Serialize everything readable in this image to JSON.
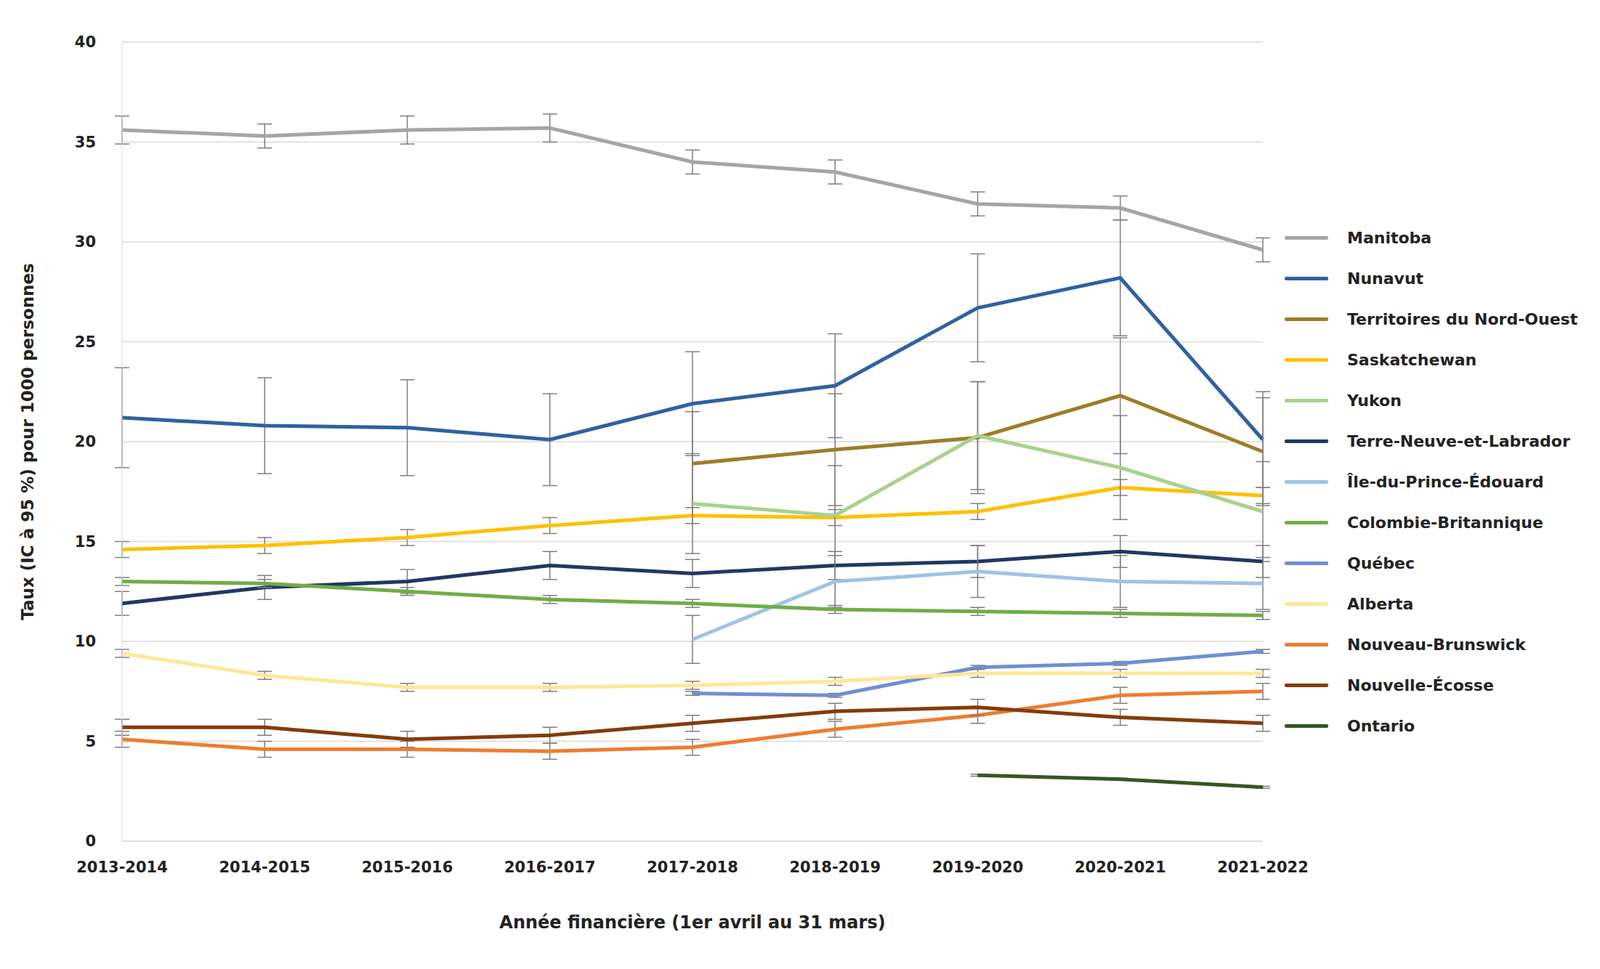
{
  "chart_data": {
    "type": "line",
    "x_label": "Année financière (1er avril au 31 mars)",
    "y_label": "Taux (IC à 95 %) pour 1000 personnes",
    "categories": [
      "2013-2014",
      "2014-2015",
      "2015-2016",
      "2016-2017",
      "2017-2018",
      "2018-2019",
      "2019-2020",
      "2020-2021",
      "2021-2022"
    ],
    "ylim": [
      0,
      40
    ],
    "yticks": [
      0,
      5,
      10,
      15,
      20,
      25,
      30,
      35,
      40
    ],
    "grid": true,
    "legend": "right",
    "series": [
      {
        "name": "Manitoba",
        "color": "#a5a5a5",
        "values": [
          35.6,
          35.3,
          35.6,
          35.7,
          34.0,
          33.5,
          31.9,
          31.7,
          29.6
        ],
        "errors": [
          0.7,
          0.6,
          0.7,
          0.7,
          0.6,
          0.6,
          0.6,
          0.6,
          0.6
        ]
      },
      {
        "name": "Nunavut",
        "color": "#2e62a0",
        "values": [
          21.2,
          20.8,
          20.7,
          20.1,
          21.9,
          22.8,
          26.7,
          28.2,
          20.1
        ],
        "errors": [
          2.5,
          2.4,
          2.4,
          2.3,
          2.6,
          2.6,
          2.7,
          2.9,
          2.4
        ]
      },
      {
        "name": "Territoires du Nord-Ouest",
        "color": "#9e7d28",
        "values": [
          null,
          null,
          null,
          null,
          18.9,
          19.6,
          20.2,
          22.3,
          19.5
        ],
        "errors": [
          null,
          null,
          null,
          null,
          2.6,
          2.8,
          2.8,
          2.9,
          2.7
        ]
      },
      {
        "name": "Saskatchewan",
        "color": "#ffc000",
        "values": [
          14.6,
          14.8,
          15.2,
          15.8,
          16.3,
          16.2,
          16.5,
          17.7,
          17.3
        ],
        "errors": [
          0.4,
          0.4,
          0.4,
          0.4,
          0.4,
          0.4,
          0.4,
          0.4,
          0.4
        ]
      },
      {
        "name": "Yukon",
        "color": "#a9d18e",
        "values": [
          null,
          null,
          null,
          null,
          16.9,
          16.3,
          20.3,
          18.7,
          16.5
        ],
        "errors": [
          null,
          null,
          null,
          null,
          2.5,
          2.5,
          2.7,
          2.6,
          2.5
        ]
      },
      {
        "name": "Terre-Neuve-et-Labrador",
        "color": "#203864",
        "values": [
          11.9,
          12.7,
          13.0,
          13.8,
          13.4,
          13.8,
          14.0,
          14.5,
          14.0
        ],
        "errors": [
          0.6,
          0.6,
          0.6,
          0.7,
          0.7,
          0.7,
          0.8,
          0.8,
          0.8
        ]
      },
      {
        "name": "Île-du-Prince-Édouard",
        "color": "#9dc3e6",
        "values": [
          null,
          null,
          null,
          null,
          10.1,
          13.0,
          13.5,
          13.0,
          12.9
        ],
        "errors": [
          null,
          null,
          null,
          null,
          1.2,
          1.3,
          1.3,
          1.3,
          1.3
        ]
      },
      {
        "name": "Colombie-Britannique",
        "color": "#70ad47",
        "values": [
          13.0,
          12.9,
          12.5,
          12.1,
          11.9,
          11.6,
          11.5,
          11.4,
          11.3
        ],
        "errors": [
          0.2,
          0.2,
          0.2,
          0.2,
          0.2,
          0.2,
          0.2,
          0.2,
          0.2
        ]
      },
      {
        "name": "Québec",
        "color": "#6f8fd1",
        "values": [
          null,
          null,
          null,
          null,
          7.4,
          7.3,
          8.7,
          8.9,
          9.5
        ],
        "errors": [
          null,
          null,
          null,
          null,
          0.1,
          0.1,
          0.1,
          0.1,
          0.1
        ]
      },
      {
        "name": "Alberta",
        "color": "#ffe699",
        "values": [
          9.4,
          8.3,
          7.7,
          7.7,
          7.8,
          8.0,
          8.4,
          8.4,
          8.4
        ],
        "errors": [
          0.2,
          0.2,
          0.2,
          0.2,
          0.2,
          0.2,
          0.2,
          0.2,
          0.2
        ]
      },
      {
        "name": "Nouveau-Brunswick",
        "color": "#ed7d31",
        "values": [
          5.1,
          4.6,
          4.6,
          4.5,
          4.7,
          5.6,
          6.3,
          7.3,
          7.5
        ],
        "errors": [
          0.4,
          0.4,
          0.4,
          0.4,
          0.4,
          0.4,
          0.4,
          0.4,
          0.4
        ]
      },
      {
        "name": "Nouvelle-Écosse",
        "color": "#843c0c",
        "values": [
          5.7,
          5.7,
          5.1,
          5.3,
          5.9,
          6.5,
          6.7,
          6.2,
          5.9
        ],
        "errors": [
          0.4,
          0.4,
          0.4,
          0.4,
          0.4,
          0.4,
          0.4,
          0.4,
          0.4
        ]
      },
      {
        "name": "Ontario",
        "color": "#375623",
        "values": [
          null,
          null,
          null,
          null,
          null,
          null,
          3.3,
          3.1,
          2.7
        ],
        "errors": [
          null,
          null,
          null,
          null,
          null,
          null,
          0.05,
          0.05,
          0.05
        ]
      }
    ]
  }
}
